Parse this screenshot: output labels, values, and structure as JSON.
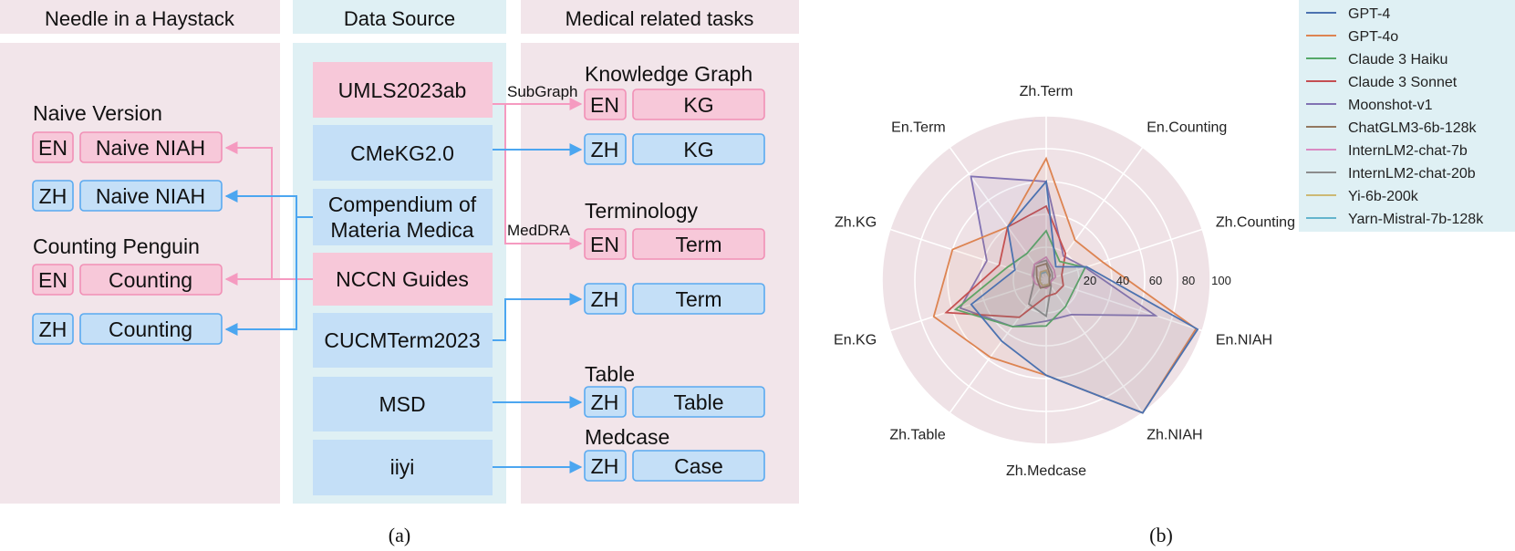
{
  "left_panel": {
    "caption": "(a)",
    "columns": {
      "niah": {
        "header": "Needle in a Haystack",
        "naive_title": "Naive Version",
        "counting_title": "Counting Penguin",
        "rows": [
          {
            "lang": "EN",
            "label": "Naive NIAH",
            "color": "pink"
          },
          {
            "lang": "ZH",
            "label": "Naive NIAH",
            "color": "blue"
          },
          {
            "lang": "EN",
            "label": "Counting",
            "color": "pink"
          },
          {
            "lang": "ZH",
            "label": "Counting",
            "color": "blue"
          }
        ]
      },
      "source": {
        "header": "Data Source",
        "items": [
          {
            "label": "UMLS2023ab",
            "color": "pink"
          },
          {
            "label": "CMeKG2.0",
            "color": "blue"
          },
          {
            "label": "Compendium of",
            "label2": "Materia Medica",
            "color": "blue"
          },
          {
            "label": "NCCN Guides",
            "color": "pink"
          },
          {
            "label": "CUCMTerm2023",
            "color": "blue"
          },
          {
            "label": "MSD",
            "color": "blue"
          },
          {
            "label": "iiyi",
            "color": "blue"
          }
        ]
      },
      "tasks": {
        "header": "Medical related tasks",
        "group_titles": {
          "kg": "Knowledge Graph",
          "term": "Terminology",
          "table": "Table",
          "case": "Medcase"
        },
        "arrow_labels": {
          "subgraph": "SubGraph",
          "meddra": "MedDRA"
        },
        "rows": [
          {
            "lang": "EN",
            "label": "KG",
            "color": "pink"
          },
          {
            "lang": "ZH",
            "label": "KG",
            "color": "blue"
          },
          {
            "lang": "EN",
            "label": "Term",
            "color": "pink"
          },
          {
            "lang": "ZH",
            "label": "Term",
            "color": "blue"
          },
          {
            "lang": "ZH",
            "label": "Table",
            "color": "blue"
          },
          {
            "lang": "ZH",
            "label": "Case",
            "color": "blue"
          }
        ]
      }
    }
  },
  "colors": {
    "pink_fill": "#f7c8d9",
    "pink_stroke": "#f190b6",
    "blue_fill": "#c4dff7",
    "blue_stroke": "#5aaaf0",
    "pink_bg": "#f2e5ea",
    "blue_bg": "#dff0f4",
    "pink_arrow": "#f59ac0",
    "blue_arrow": "#4ca6f0",
    "radar_bg": "#efe2e6"
  },
  "chart_data": {
    "type": "radar",
    "caption": "(b)",
    "axes": [
      "Zh.Term",
      "En.Counting",
      "Zh.Counting",
      "En.NIAH",
      "Zh.NIAH",
      "Zh.Medcase",
      "Zh.Table",
      "En.KG",
      "Zh.KG",
      "En.Term"
    ],
    "rlim": [
      0,
      100
    ],
    "rticks": [
      20,
      40,
      60,
      80,
      100
    ],
    "grid": true,
    "legend": "top-right",
    "series": [
      {
        "name": "GPT-4",
        "color": "#4c72b0",
        "values": [
          60,
          10,
          26,
          97,
          100,
          58,
          46,
          48,
          20,
          40
        ]
      },
      {
        "name": "GPT-4o",
        "color": "#dd8452",
        "values": [
          74,
          30,
          36,
          96,
          100,
          58,
          58,
          72,
          60,
          40
        ]
      },
      {
        "name": "Claude 3 Haiku",
        "color": "#55a868",
        "values": [
          30,
          14,
          25,
          18,
          20,
          28,
          35,
          58,
          25,
          20
        ]
      },
      {
        "name": "Claude 3 Sonnet",
        "color": "#c44e52",
        "values": [
          45,
          20,
          10,
          11,
          10,
          10,
          28,
          64,
          30,
          40
        ]
      },
      {
        "name": "Moonshot-v1",
        "color": "#8172b3",
        "values": [
          60,
          18,
          25,
          70,
          26,
          25,
          35,
          55,
          38,
          78
        ]
      },
      {
        "name": "ChatGLM3-6b-128k",
        "color": "#937860",
        "values": [
          10,
          4,
          2,
          2,
          4,
          4,
          6,
          5,
          6,
          10
        ]
      },
      {
        "name": "InternLM2-chat-7b",
        "color": "#da8bc3",
        "values": [
          14,
          8,
          6,
          3,
          4,
          5,
          5,
          7,
          9,
          12
        ]
      },
      {
        "name": "InternLM2-chat-20b",
        "color": "#8c8c8c",
        "values": [
          12,
          6,
          4,
          3,
          5,
          22,
          18,
          8,
          8,
          12
        ]
      },
      {
        "name": "Yi-6b-200k",
        "color": "#ccb974",
        "values": [
          6,
          3,
          2,
          2,
          3,
          3,
          4,
          4,
          4,
          6
        ]
      },
      {
        "name": "Yarn-Mistral-7b-128k",
        "color": "#64b5cd",
        "values": [
          5,
          3,
          2,
          2,
          3,
          3,
          4,
          4,
          4,
          5
        ]
      }
    ]
  }
}
